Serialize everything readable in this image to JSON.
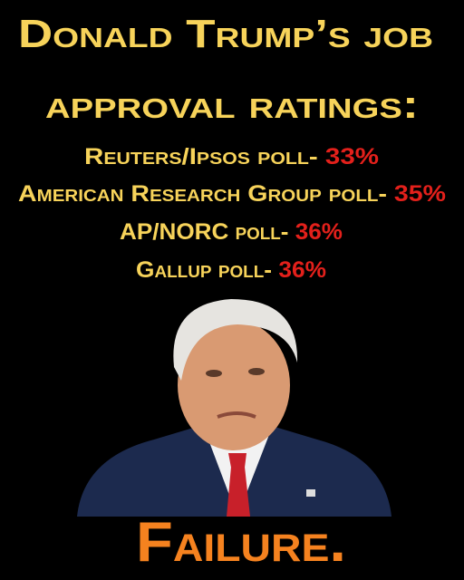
{
  "header": {
    "title_lines": [
      "Donald Trump’s job",
      "approval ratings:"
    ]
  },
  "polls": [
    {
      "name": "Reuters/Ipsos poll-",
      "value": "33%"
    },
    {
      "name": "American Research Group poll-",
      "value": "35%"
    },
    {
      "name": "AP/NORC poll-",
      "value": "36%"
    },
    {
      "name": "Gallup poll-",
      "value": "36%"
    }
  ],
  "footer": {
    "verdict": "Failure."
  }
}
